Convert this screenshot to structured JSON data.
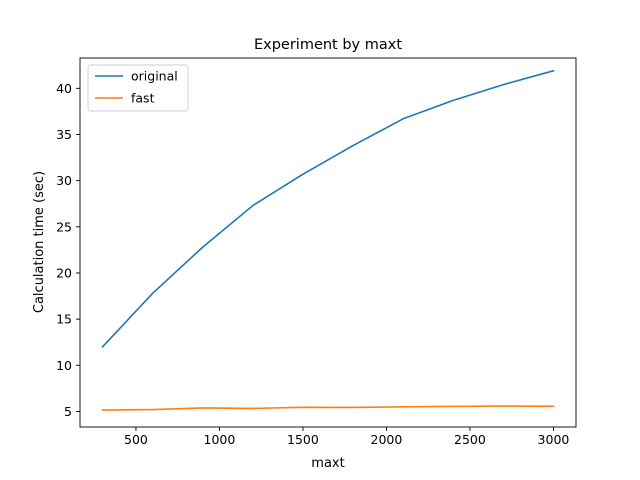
{
  "chart_data": {
    "type": "line",
    "title": "Experiment by maxt",
    "xlabel": "maxt",
    "ylabel": "Calculation time (sec)",
    "x": [
      300,
      600,
      900,
      1200,
      1500,
      1800,
      2100,
      2400,
      2700,
      3000
    ],
    "series": [
      {
        "name": "original",
        "color": "#1f77b4",
        "values": [
          12.0,
          17.8,
          22.8,
          27.3,
          30.7,
          33.8,
          36.7,
          38.7,
          40.4,
          41.9
        ]
      },
      {
        "name": "fast",
        "color": "#ff7f0e",
        "values": [
          5.15,
          5.2,
          5.38,
          5.33,
          5.45,
          5.43,
          5.5,
          5.55,
          5.58,
          5.56
        ]
      }
    ],
    "xticks": [
      500,
      1000,
      1500,
      2000,
      2500,
      3000
    ],
    "yticks": [
      5,
      10,
      15,
      20,
      25,
      30,
      35,
      40
    ],
    "xlim": [
      165,
      3135
    ],
    "ylim": [
      3.315,
      43.285
    ],
    "grid": false,
    "legend_position": "top-left"
  }
}
